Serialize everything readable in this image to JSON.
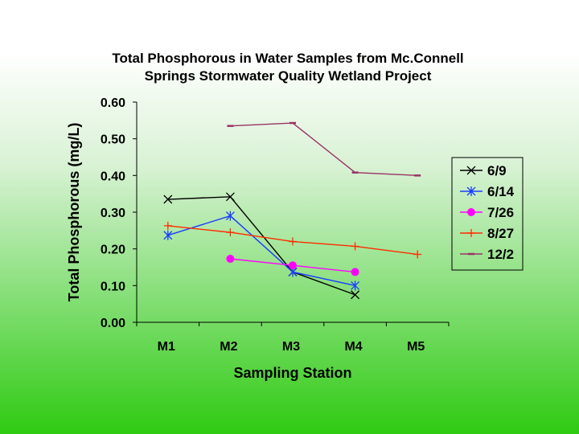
{
  "chart_data": {
    "type": "line",
    "title_lines": [
      "Total Phosphorous in Water Samples from Mc.Connell",
      "Springs Stormwater Quality Wetland Project"
    ],
    "xlabel": "Sampling Station",
    "ylabel": "Total Phosphorous (mg/L)",
    "categories": [
      "M1",
      "M2",
      "M3",
      "M4",
      "M5"
    ],
    "ylim": [
      0,
      0.6
    ],
    "yticks": [
      "0.00",
      "0.10",
      "0.20",
      "0.30",
      "0.40",
      "0.50",
      "0.60"
    ],
    "ytick_values": [
      0,
      0.1,
      0.2,
      0.3,
      0.4,
      0.5,
      0.6
    ],
    "legend_position": "right",
    "series": [
      {
        "name": "6/9",
        "color": "#000000",
        "marker": "x",
        "values": [
          0.335,
          0.342,
          0.137,
          0.075,
          null
        ]
      },
      {
        "name": "6/14",
        "color": "#1a3cff",
        "marker": "star",
        "values": [
          0.237,
          0.29,
          0.137,
          0.1,
          null
        ]
      },
      {
        "name": "7/26",
        "color": "#ff00ff",
        "marker": "circle",
        "values": [
          null,
          0.173,
          0.155,
          0.137,
          null
        ]
      },
      {
        "name": "8/27",
        "color": "#ff2a00",
        "marker": "plus",
        "values": [
          0.263,
          0.245,
          0.22,
          0.207,
          0.185
        ]
      },
      {
        "name": "12/2",
        "color": "#993366",
        "marker": "dash",
        "values": [
          null,
          0.535,
          0.543,
          0.408,
          0.4
        ]
      }
    ]
  }
}
